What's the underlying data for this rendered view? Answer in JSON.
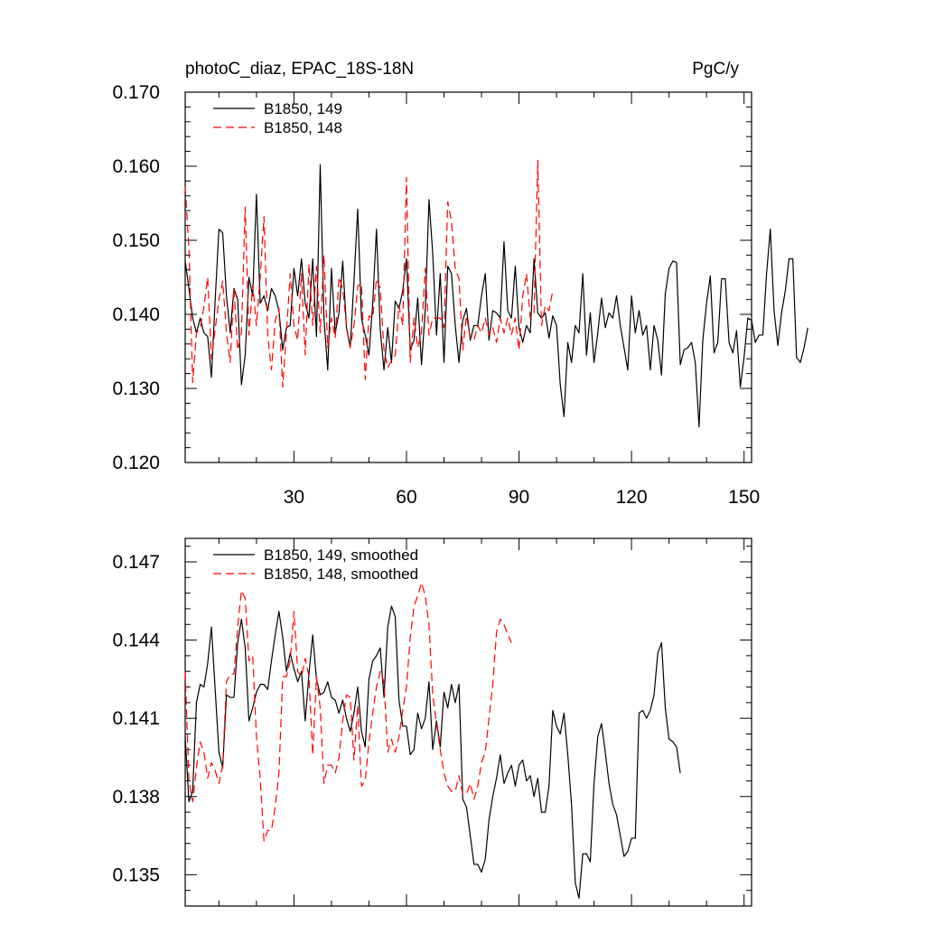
{
  "chart_data": [
    {
      "type": "line",
      "title": "photoC_diaz, EPAC_18S-18N",
      "units": "PgC/y",
      "xlabel": "",
      "ylabel": "",
      "xlim": [
        1,
        152
      ],
      "ylim": [
        0.12,
        0.17
      ],
      "xticks": [
        30,
        60,
        90,
        120,
        150
      ],
      "yticks": [
        0.12,
        0.13,
        0.14,
        0.15,
        0.16,
        0.17
      ],
      "yticklabels": [
        "0.120",
        "0.130",
        "0.140",
        "0.150",
        "0.160",
        "0.170"
      ],
      "grid": false,
      "legend_position": "top-left",
      "series": [
        {
          "name": "B1850, 149",
          "color": "#000000",
          "dash": "solid",
          "values": [
            0.1472,
            0.1435,
            0.1395,
            0.1375,
            0.1395,
            0.1375,
            0.137,
            0.1315,
            0.142,
            0.1515,
            0.151,
            0.1425,
            0.1375,
            0.1435,
            0.142,
            0.1305,
            0.1345,
            0.145,
            0.1425,
            0.1562,
            0.1415,
            0.1425,
            0.1405,
            0.1435,
            0.1425,
            0.1405,
            0.1352,
            0.1382,
            0.1385,
            0.1462,
            0.1425,
            0.1475,
            0.1415,
            0.1395,
            0.1475,
            0.137,
            0.1602,
            0.1395,
            0.1325,
            0.1462,
            0.1375,
            0.1402,
            0.1472,
            0.1382,
            0.1355,
            0.1445,
            0.1542,
            0.1395,
            0.1372,
            0.1345,
            0.1415,
            0.1515,
            0.138,
            0.1325,
            0.1382,
            0.1335,
            0.1418,
            0.1408,
            0.1432,
            0.1475,
            0.1352,
            0.1365,
            0.1422,
            0.1332,
            0.1405,
            0.1555,
            0.1482,
            0.1372,
            0.1455,
            0.1335,
            0.1465,
            0.1455,
            0.1385,
            0.1335,
            0.1392,
            0.1408,
            0.1365,
            0.1385,
            0.1385,
            0.1425,
            0.1455,
            0.1365,
            0.1405,
            0.1402,
            0.1395,
            0.1498,
            0.1405,
            0.1395,
            0.1465,
            0.1382,
            0.1362,
            0.1385,
            0.1375,
            0.1475,
            0.1402,
            0.1395,
            0.1402,
            0.1368,
            0.1398,
            0.1385,
            0.1305,
            0.1262,
            0.1362,
            0.1335,
            0.1385,
            0.1375,
            0.1455,
            0.1345,
            0.1402,
            0.1335,
            0.1375,
            0.1422,
            0.1382,
            0.1402,
            0.1395,
            0.1425,
            0.1385,
            0.1355,
            0.1325,
            0.1425,
            0.1375,
            0.1405,
            0.1372,
            0.1385,
            0.1325,
            0.1385,
            0.1365,
            0.1318,
            0.1428,
            0.1462,
            0.1472,
            0.147,
            0.1332,
            0.1352,
            0.1355,
            0.1362,
            0.1335,
            0.1248,
            0.1365,
            0.1415,
            0.1452,
            0.1348,
            0.1362,
            0.1448,
            0.1448,
            0.1362,
            0.1348,
            0.1378,
            0.1302,
            0.1342,
            0.1395,
            0.1392,
            0.1362,
            0.1372,
            0.1372,
            0.1455,
            0.1515,
            0.1405,
            0.1358,
            0.1402,
            0.1432,
            0.1475,
            0.1475,
            0.1342,
            0.1335,
            0.1355,
            0.1382
          ]
        },
        {
          "name": "B1850, 148",
          "color": "#ff0000",
          "dash": "dashed",
          "values": [
            0.1572,
            0.149,
            0.1308,
            0.1375,
            0.1382,
            0.141,
            0.145,
            0.134,
            0.138,
            0.142,
            0.1445,
            0.1375,
            0.1335,
            0.1435,
            0.1352,
            0.1375,
            0.1545,
            0.1372,
            0.144,
            0.1385,
            0.145,
            0.1532,
            0.1372,
            0.1325,
            0.1392,
            0.1408,
            0.1302,
            0.1375,
            0.1455,
            0.1385,
            0.1365,
            0.1455,
            0.1345,
            0.1468,
            0.1385,
            0.1465,
            0.1375,
            0.148,
            0.1355,
            0.1395,
            0.1368,
            0.145,
            0.1435,
            0.1385,
            0.1355,
            0.1385,
            0.1438,
            0.1442,
            0.1312,
            0.1398,
            0.1395,
            0.1448,
            0.1435,
            0.1352,
            0.1328,
            0.1338,
            0.1345,
            0.1412,
            0.1385,
            0.1585,
            0.1335,
            0.1395,
            0.1355,
            0.1375,
            0.1462,
            0.1372,
            0.1395,
            0.1395,
            0.1395,
            0.1382,
            0.1552,
            0.1525,
            0.1462,
            0.1448,
            0.1352,
            0.1398,
            0.1368,
            0.1365,
            0.1385,
            0.1375,
            0.1395,
            0.1372,
            0.1382,
            0.1362,
            0.1395,
            0.1375,
            0.1395,
            0.1372,
            0.1395,
            0.1352,
            0.1425,
            0.1455,
            0.1395,
            0.1402,
            0.1608,
            0.1385,
            0.1412,
            0.1405,
            0.1432
          ]
        }
      ],
      "legend": [
        "B1850, 149",
        "B1850, 148"
      ]
    },
    {
      "type": "line",
      "title": "",
      "xlabel": "",
      "ylabel": "",
      "xlim": [
        1,
        152
      ],
      "ylim": [
        0.1338,
        0.1479
      ],
      "xticks": [
        30,
        60,
        90,
        120,
        150
      ],
      "yticks": [
        0.135,
        0.138,
        0.141,
        0.144,
        0.147
      ],
      "yticklabels": [
        "0.135",
        "0.138",
        "0.141",
        "0.144",
        "0.147"
      ],
      "grid": false,
      "legend_position": "top-left",
      "series": [
        {
          "name": "B1850, 149, smoothed",
          "color": "#000000",
          "dash": "solid",
          "values": [
            0.1403,
            0.1378,
            0.1382,
            0.1416,
            0.1423,
            0.1422,
            0.1431,
            0.1445,
            0.1421,
            0.1397,
            0.1391,
            0.1419,
            0.1418,
            0.1418,
            0.1439,
            0.1448,
            0.1437,
            0.1409,
            0.1414,
            0.142,
            0.1423,
            0.1423,
            0.1421,
            0.1432,
            0.1442,
            0.1451,
            0.1441,
            0.1428,
            0.1435,
            0.1429,
            0.1424,
            0.1428,
            0.1409,
            0.1427,
            0.1442,
            0.1425,
            0.1419,
            0.142,
            0.1424,
            0.1418,
            0.1417,
            0.1412,
            0.1417,
            0.141,
            0.1405,
            0.1412,
            0.1422,
            0.1405,
            0.1399,
            0.1425,
            0.1432,
            0.1434,
            0.1437,
            0.1418,
            0.1445,
            0.1453,
            0.1449,
            0.1417,
            0.1407,
            0.1407,
            0.1396,
            0.1398,
            0.1412,
            0.1406,
            0.141,
            0.1424,
            0.1398,
            0.1409,
            0.1399,
            0.142,
            0.1414,
            0.1423,
            0.1416,
            0.1423,
            0.1379,
            0.1376,
            0.1365,
            0.1354,
            0.1354,
            0.1351,
            0.1356,
            0.1371,
            0.138,
            0.1387,
            0.1396,
            0.1385,
            0.1389,
            0.1392,
            0.1384,
            0.1392,
            0.1394,
            0.1386,
            0.1388,
            0.138,
            0.1387,
            0.1374,
            0.1374,
            0.1384,
            0.1413,
            0.1407,
            0.1404,
            0.1412,
            0.1396,
            0.1377,
            0.1347,
            0.1341,
            0.1358,
            0.1358,
            0.1355,
            0.1385,
            0.1403,
            0.1408,
            0.1397,
            0.1385,
            0.1377,
            0.1373,
            0.1365,
            0.1357,
            0.1359,
            0.1364,
            0.1364,
            0.1412,
            0.1413,
            0.141,
            0.1413,
            0.1419,
            0.1435,
            0.1439,
            0.1414,
            0.1402,
            0.1401,
            0.1399,
            0.1389
          ]
        },
        {
          "name": "B1850, 148, smoothed",
          "color": "#ff0000",
          "dash": "dashed",
          "values": [
            0.1428,
            0.1386,
            0.1378,
            0.1391,
            0.1401,
            0.1397,
            0.1387,
            0.1393,
            0.139,
            0.1385,
            0.1392,
            0.1424,
            0.1427,
            0.1427,
            0.1445,
            0.1459,
            0.1456,
            0.1432,
            0.1434,
            0.1403,
            0.1387,
            0.1363,
            0.1367,
            0.1367,
            0.1376,
            0.1389,
            0.1426,
            0.1426,
            0.1432,
            0.1451,
            0.1428,
            0.1426,
            0.1433,
            0.1426,
            0.1396,
            0.1426,
            0.1414,
            0.1385,
            0.1392,
            0.1392,
            0.1389,
            0.1395,
            0.1409,
            0.1419,
            0.1418,
            0.1394,
            0.1415,
            0.1384,
            0.1386,
            0.1401,
            0.1412,
            0.1422,
            0.1428,
            0.1424,
            0.1397,
            0.1402,
            0.1397,
            0.1403,
            0.1413,
            0.1422,
            0.1441,
            0.1453,
            0.1457,
            0.1462,
            0.1457,
            0.1446,
            0.1419,
            0.1408,
            0.1398,
            0.1389,
            0.1384,
            0.1382,
            0.1382,
            0.1388,
            0.1381,
            0.1381,
            0.1385,
            0.1379,
            0.1384,
            0.1393,
            0.1397,
            0.141,
            0.1423,
            0.1443,
            0.1448,
            0.1446,
            0.1442,
            0.1439
          ]
        }
      ],
      "legend": [
        "B1850, 149, smoothed",
        "B1850, 148, smoothed"
      ]
    }
  ]
}
